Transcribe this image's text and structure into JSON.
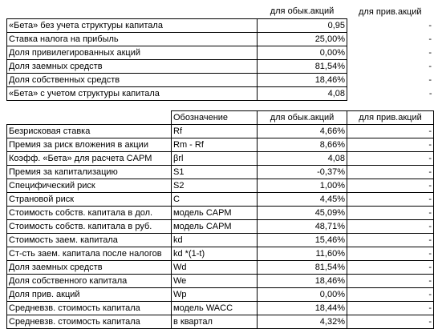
{
  "table1": {
    "headers": [
      "",
      "для обык.акций",
      "для прив.акций"
    ],
    "rows": [
      [
        "«Бета» без учета структуры капитала",
        "0,95",
        "-"
      ],
      [
        "Ставка налога на прибыль",
        "25,00%",
        "-"
      ],
      [
        "Доля привилегированных акций",
        "0,00%",
        "-"
      ],
      [
        "Доля заемных средств",
        "81,54%",
        "-"
      ],
      [
        "Доля собственных средств",
        "18,46%",
        "-"
      ],
      [
        "«Бета» с учетом структуры капитала",
        "4,08",
        "-"
      ]
    ]
  },
  "table2": {
    "headers": [
      "",
      "Обозначение",
      "для обык.акций",
      "для прив.акций"
    ],
    "rows": [
      [
        "Безрисковая ставка",
        "Rf",
        "4,66%",
        "-"
      ],
      [
        "Премия за риск вложения в акции",
        "Rm - Rf",
        "8,66%",
        "-"
      ],
      [
        "Коэфф. «Бета» для расчета CAPM",
        "βrl",
        "4,08",
        "-"
      ],
      [
        "Премия за капитализацию",
        "S1",
        "-0,37%",
        "-"
      ],
      [
        "Специфический риск",
        "S2",
        "1,00%",
        "-"
      ],
      [
        "Страновой риск",
        "C",
        "4,45%",
        "-"
      ],
      [
        "Стоимость собств. капитала в дол.",
        "модель CAPM",
        "45,09%",
        "-"
      ],
      [
        "Стоимость собств. капитала в руб.",
        "модель CAPM",
        "48,71%",
        "-"
      ],
      [
        "Стоимость заем. капитала",
        "kd",
        "15,46%",
        "-"
      ],
      [
        "Ст-сть заем. капитала после налогов",
        "kd *(1-t)",
        "11,60%",
        "-"
      ],
      [
        "Доля заемных средств",
        "Wd",
        "81,54%",
        "-"
      ],
      [
        "Доля собственного капитала",
        "We",
        "18,46%",
        "-"
      ],
      [
        "Доля прив. акций",
        "Wp",
        "0,00%",
        "-"
      ],
      [
        "Средневзв. стоимость капитала",
        "модель WACC",
        "18,44%",
        "-"
      ],
      [
        "Средневзв. стоимость капитала",
        "в квартал",
        "4,32%",
        "-"
      ]
    ]
  }
}
